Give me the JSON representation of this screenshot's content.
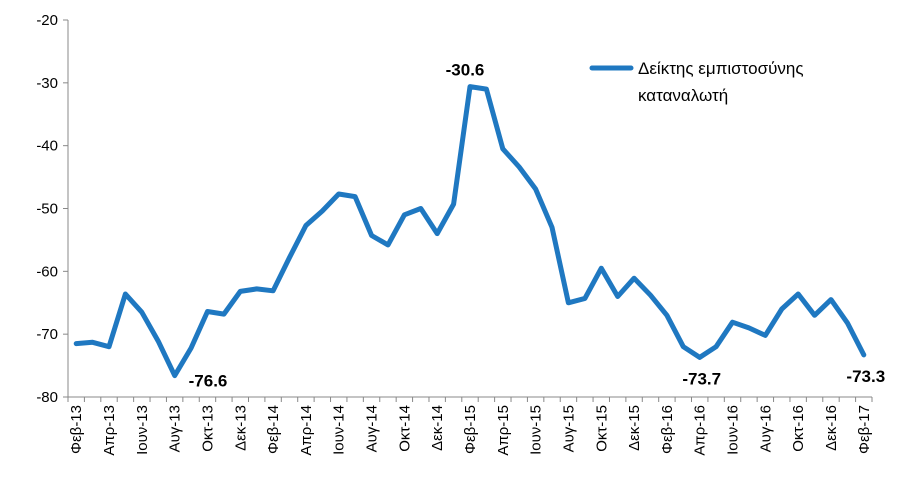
{
  "chart_data": {
    "type": "line",
    "title": "",
    "xlabel": "",
    "ylabel": "",
    "ylim": [
      -80,
      -20
    ],
    "yticks": [
      -20,
      -30,
      -40,
      -50,
      -60,
      -70,
      -80
    ],
    "grid": false,
    "legend_position": "top-right",
    "x": [
      "Φεβ-13",
      "Μαρ-13",
      "Απρ-13",
      "Μαϊ-13",
      "Ιουν-13",
      "Ιουλ-13",
      "Αυγ-13",
      "Σεπ-13",
      "Οκτ-13",
      "Νοε-13",
      "Δεκ-13",
      "Ιαν-14",
      "Φεβ-14",
      "Μαρ-14",
      "Απρ-14",
      "Μαϊ-14",
      "Ιουν-14",
      "Ιουλ-14",
      "Αυγ-14",
      "Σεπ-14",
      "Οκτ-14",
      "Νοε-14",
      "Δεκ-14",
      "Ιαν-15",
      "Φεβ-15",
      "Μαρ-15",
      "Απρ-15",
      "Μαϊ-15",
      "Ιουν-15",
      "Ιουλ-15",
      "Αυγ-15",
      "Σεπ-15",
      "Οκτ-15",
      "Νοε-15",
      "Δεκ-15",
      "Ιαν-16",
      "Φεβ-16",
      "Μαρ-16",
      "Απρ-16",
      "Μαϊ-16",
      "Ιουν-16",
      "Ιουλ-16",
      "Αυγ-16",
      "Σεπ-16",
      "Οκτ-16",
      "Νοε-16",
      "Δεκ-16",
      "Ιαν-17",
      "Φεβ-17"
    ],
    "x_tick_labels": [
      "Φεβ-13",
      "Απρ-13",
      "Ιουν-13",
      "Αυγ-13",
      "Οκτ-13",
      "Δεκ-13",
      "Φεβ-14",
      "Απρ-14",
      "Ιουν-14",
      "Αυγ-14",
      "Οκτ-14",
      "Δεκ-14",
      "Φεβ-15",
      "Απρ-15",
      "Ιουν-15",
      "Αυγ-15",
      "Οκτ-15",
      "Δεκ-15",
      "Φεβ-16",
      "Απρ-16",
      "Ιουν-16",
      "Αυγ-16",
      "Οκτ-16",
      "Δεκ-16",
      "Φεβ-17"
    ],
    "series": [
      {
        "name": "Δείκτης εμπιστοσύνης καταναλωτή",
        "name_lines": [
          "Δείκτης εμπιστοσύνης",
          "καταναλωτή"
        ],
        "color": "#1F78C1",
        "values": [
          -71.5,
          -71.3,
          -72.0,
          -63.6,
          -66.5,
          -71.1,
          -76.6,
          -72.2,
          -66.4,
          -66.8,
          -63.2,
          -62.8,
          -63.1,
          -57.8,
          -52.7,
          -50.4,
          -47.7,
          -48.1,
          -54.3,
          -55.8,
          -51.0,
          -50.0,
          -54.0,
          -49.3,
          -30.6,
          -31.0,
          -40.5,
          -43.4,
          -46.9,
          -53.0,
          -65.0,
          -64.3,
          -59.5,
          -64.0,
          -61.1,
          -63.8,
          -67.0,
          -72.0,
          -73.7,
          -72.0,
          -68.1,
          -69.0,
          -70.2,
          -66.0,
          -63.6,
          -67.0,
          -64.5,
          -68.2,
          -73.3
        ]
      }
    ],
    "annotations": [
      {
        "index": 6,
        "text": "-76.6",
        "position": "below-right"
      },
      {
        "index": 24,
        "text": "-30.6",
        "position": "above-left"
      },
      {
        "index": 38,
        "text": "-73.7",
        "position": "below"
      },
      {
        "index": 48,
        "text": "-73.3",
        "position": "below"
      }
    ]
  }
}
